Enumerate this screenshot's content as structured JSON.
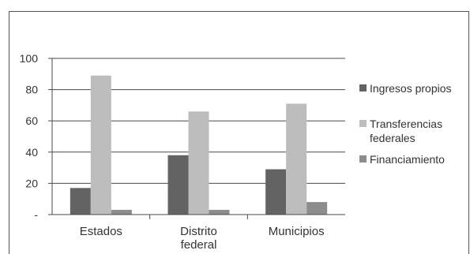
{
  "chart_data": {
    "type": "bar",
    "categories": [
      [
        "Estados"
      ],
      [
        "Distrito",
        "federal"
      ],
      [
        "Municipios"
      ]
    ],
    "y_tick_labels": [
      "-",
      "20",
      "40",
      "60",
      "80",
      "100"
    ],
    "ylim": [
      0,
      100
    ],
    "series": [
      {
        "name": "Ingresos propios",
        "name_lines": [
          "Ingresos propios"
        ],
        "color": "#636363",
        "values": [
          17,
          38,
          29
        ]
      },
      {
        "name": "Transferencias federales",
        "name_lines": [
          "Transferencias",
          "federales"
        ],
        "color": "#bdbdbd",
        "values": [
          89,
          66,
          71
        ]
      },
      {
        "name": "Financiamiento",
        "name_lines": [
          "Financiamiento"
        ],
        "color": "#8c8c8c",
        "values": [
          3,
          3,
          8
        ]
      }
    ],
    "grid": true,
    "legend": "right"
  }
}
